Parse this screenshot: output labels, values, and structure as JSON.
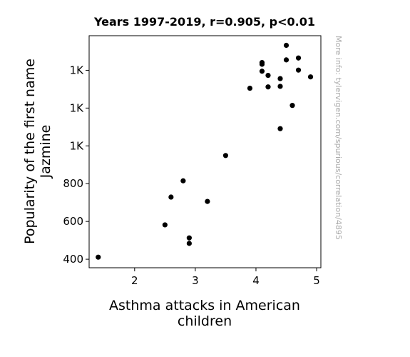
{
  "chart_data": {
    "type": "scatter",
    "title": "Years 1997-2019, r=0.905, p<0.01",
    "xlabel": [
      "Asthma attacks in American",
      "children"
    ],
    "ylabel": [
      "Popularity of the first name",
      "Jazmine"
    ],
    "xlim": [
      1.25,
      5.07
    ],
    "ylim": [
      355,
      1583
    ],
    "x_ticks": [
      {
        "value": 2,
        "label": "2"
      },
      {
        "value": 3,
        "label": "3"
      },
      {
        "value": 4,
        "label": "4"
      },
      {
        "value": 5,
        "label": "5"
      }
    ],
    "y_ticks": [
      {
        "value": 400,
        "label": "400"
      },
      {
        "value": 600,
        "label": "600"
      },
      {
        "value": 800,
        "label": "800"
      },
      {
        "value": 1000,
        "label": "1K"
      },
      {
        "value": 1200,
        "label": "1K"
      },
      {
        "value": 1400,
        "label": "1K"
      }
    ],
    "grid": false,
    "marker_color": "#000000",
    "points": [
      {
        "x": 1.4,
        "y": 411
      },
      {
        "x": 2.5,
        "y": 582
      },
      {
        "x": 2.6,
        "y": 729
      },
      {
        "x": 2.8,
        "y": 815
      },
      {
        "x": 2.9,
        "y": 484
      },
      {
        "x": 2.9,
        "y": 513
      },
      {
        "x": 3.2,
        "y": 706
      },
      {
        "x": 3.5,
        "y": 949
      },
      {
        "x": 3.9,
        "y": 1305
      },
      {
        "x": 4.1,
        "y": 1395
      },
      {
        "x": 4.1,
        "y": 1432
      },
      {
        "x": 4.1,
        "y": 1441
      },
      {
        "x": 4.2,
        "y": 1373
      },
      {
        "x": 4.2,
        "y": 1312
      },
      {
        "x": 4.4,
        "y": 1356
      },
      {
        "x": 4.4,
        "y": 1315
      },
      {
        "x": 4.4,
        "y": 1091
      },
      {
        "x": 4.5,
        "y": 1532
      },
      {
        "x": 4.5,
        "y": 1455
      },
      {
        "x": 4.6,
        "y": 1214
      },
      {
        "x": 4.7,
        "y": 1465
      },
      {
        "x": 4.7,
        "y": 1401
      },
      {
        "x": 4.9,
        "y": 1365
      }
    ]
  },
  "source": "More info: tylervigen.com/spurious/correlation/4895"
}
